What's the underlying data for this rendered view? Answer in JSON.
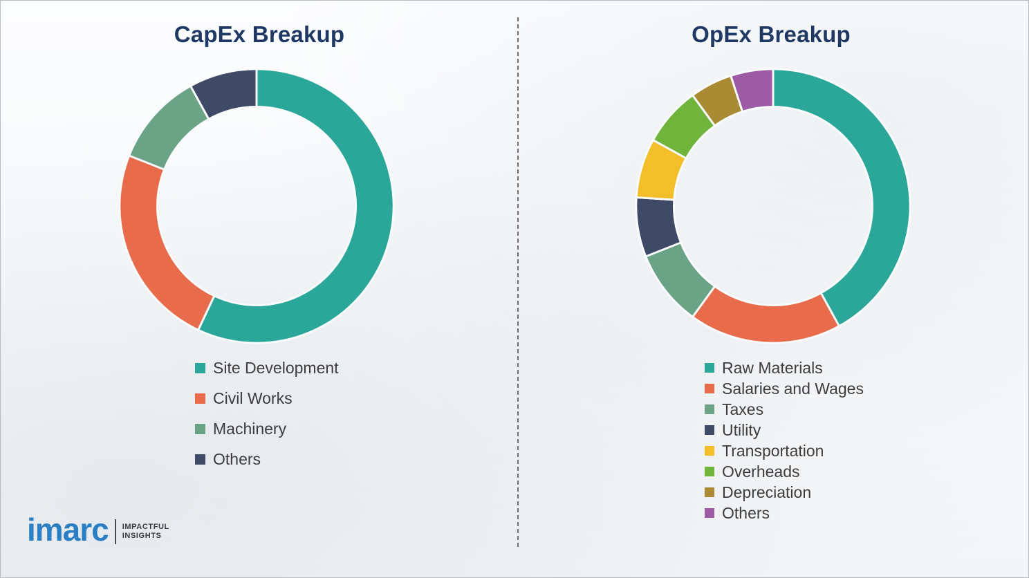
{
  "chart_data": [
    {
      "type": "pie",
      "subtype": "donut",
      "title": "CapEx Breakup",
      "labels": [
        "Site Development",
        "Civil Works",
        "Machinery",
        "Others"
      ],
      "values": [
        57,
        24,
        11,
        8
      ],
      "colors": [
        "#2ba79a",
        "#e86c4b",
        "#6ba386",
        "#3e4a66"
      ],
      "legend_position": "below-left",
      "gridlines": false
    },
    {
      "type": "pie",
      "subtype": "donut",
      "title": "OpEx Breakup",
      "labels": [
        "Raw Materials",
        "Salaries and Wages",
        "Taxes",
        "Utility",
        "Transportation",
        "Overheads",
        "Depreciation",
        "Others"
      ],
      "values": [
        42,
        18,
        9,
        7,
        7,
        7,
        5,
        5
      ],
      "colors": [
        "#2ba79a",
        "#e86c4b",
        "#6ba386",
        "#3e4a66",
        "#f2bf2b",
        "#71b43c",
        "#a98b33",
        "#9c5ba4"
      ],
      "legend_position": "below-left",
      "gridlines": false
    }
  ],
  "logo": {
    "brand": "imarc",
    "tagline_line1": "IMPACTFUL",
    "tagline_line2": "INSIGHTS"
  }
}
